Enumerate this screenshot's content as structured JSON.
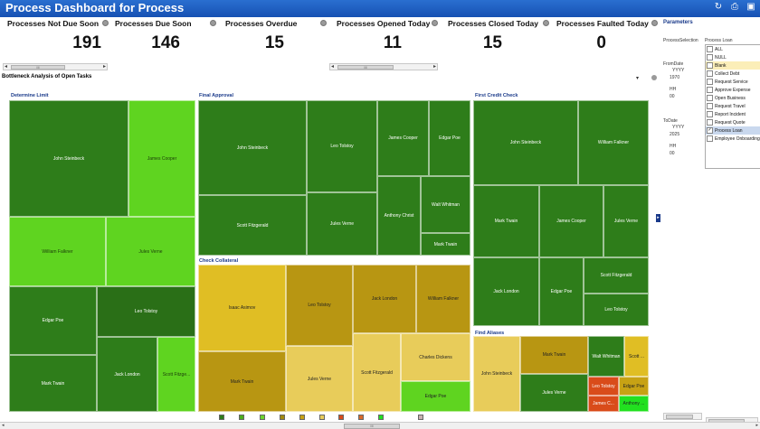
{
  "window": {
    "title": "Process Dashboard for Process"
  },
  "toolbar_icons": [
    "refresh-icon",
    "print-icon",
    "export-icon"
  ],
  "kpis": [
    {
      "label": "Processes Not Due Soon",
      "value": "191"
    },
    {
      "label": "Processes Due Soon",
      "value": "146"
    },
    {
      "label": "Processes Overdue",
      "value": "15"
    },
    {
      "label": "Processes Opened Today",
      "value": "11"
    },
    {
      "label": "Processes Closed Today",
      "value": "15"
    },
    {
      "label": "Processes Faulted Today",
      "value": "0"
    }
  ],
  "section": {
    "title": "Bottleneck Analysis of Open Tasks"
  },
  "panels": {
    "determine_limit": {
      "title": "Determine Limit",
      "cells": [
        "John Steinbeck",
        "James Cooper",
        "William Falkner",
        "Jules Verne",
        "Edgar Poe",
        "Leo Tolstoy",
        "Mark Twain",
        "Jack London",
        "Scott Fitzge..."
      ]
    },
    "final_approval": {
      "title": "Final Approval",
      "cells": [
        "John Steinbeck",
        "Leo Tolstoy",
        "James Cooper",
        "Edgar Poe",
        "Scott Fitzgerald",
        "Jules Verne",
        "Anthony Christ",
        "Walt Whitman",
        "Mark Twain"
      ]
    },
    "first_credit_check": {
      "title": "First Credit Check",
      "cells": [
        "John Steinbeck",
        "William Falkner",
        "Mark Twain",
        "James Cooper",
        "Jules Verne",
        "Scott Fitzgerald",
        "Jack London",
        "Edgar Poe",
        "Leo Tolstoy"
      ]
    },
    "check_collateral": {
      "title": "Check Collateral",
      "cells": [
        "Isaac Asimov",
        "Leo Tolstoy",
        "Jack London",
        "William Falkner",
        "Mark Twain",
        "Jules Verne",
        "Scott Fitzgerald",
        "Charles Dickens",
        "Edgar Poe"
      ]
    },
    "find_aliases": {
      "title": "Find Aliases",
      "cells": [
        "John Steinbeck",
        "Mark Twain",
        "Walt Whitman",
        "Scott ...",
        "Jules Verne",
        "Leo Tolstoy",
        "Edgar Poe",
        "James C...",
        "Anthony ..."
      ]
    }
  },
  "parameters": {
    "title": "Parameters",
    "process_selection_label": "ProcessSelection",
    "process_value": "Process Loan",
    "from_date_label": "FromDate",
    "from_yyyy_label": "YYYY",
    "from_yyyy_value": "1970",
    "from_hh_label": "HH",
    "from_hh_value": "00",
    "to_date_label": "ToDate",
    "to_yyyy_label": "YYYY",
    "to_yyyy_value": "2025",
    "to_hh_label": "HH",
    "to_hh_value": "00",
    "options": [
      {
        "label": "ALL",
        "checked": false
      },
      {
        "label": "NULL",
        "checked": false
      },
      {
        "label": "Blank",
        "checked": false
      },
      {
        "label": "Collect Debt",
        "checked": false
      },
      {
        "label": "Request Service",
        "checked": false
      },
      {
        "label": "Approve Expense",
        "checked": false
      },
      {
        "label": "Open Business",
        "checked": false
      },
      {
        "label": "Request Travel",
        "checked": false
      },
      {
        "label": "Report Incident",
        "checked": false
      },
      {
        "label": "Request Quote",
        "checked": false
      },
      {
        "label": "Process Loan",
        "checked": true
      },
      {
        "label": "Employee Onboarding",
        "checked": false
      }
    ]
  },
  "scroll": {
    "thumb_label": "III"
  },
  "colors": {
    "title_bar": "#1a5cc4",
    "dark_green": "#2e7d1a",
    "mid_green": "#4caf1e",
    "light_green": "#6cd62e",
    "dark_olive": "#a28a0f",
    "olive": "#c7a214",
    "light_yellow": "#e8cc5a",
    "red": "#d94b1a",
    "bright_green": "#22e020"
  },
  "legend_colors": [
    "#2e7d1a",
    "#4caf1e",
    "#6cd62e",
    "#a28a0f",
    "#c7a214",
    "#e8cc5a",
    "#d94b1a",
    "#d96a2a",
    "#22e020",
    "#c8b0b0"
  ]
}
